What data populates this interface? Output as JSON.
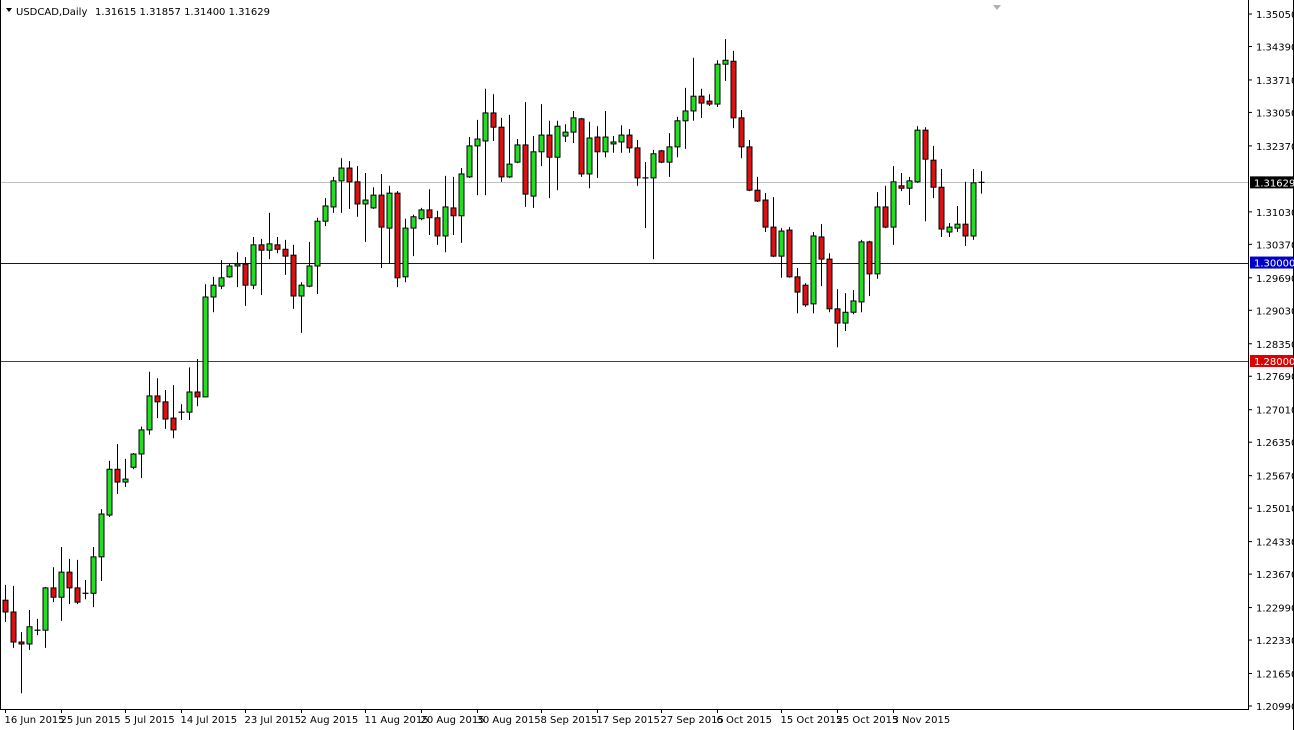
{
  "header": {
    "menu_icon": "triangle-down-icon",
    "symbol": "USDCAD,Daily",
    "ohlc": "1.31615 1.31857 1.31400 1.31629"
  },
  "colors": {
    "bull": "#22dd22",
    "bear": "#dd1111",
    "outline": "#000000",
    "level_blue": "#0000cc",
    "level_red": "#dd0000",
    "bid_line": "#c0c0c0"
  },
  "chart_data": {
    "type": "candlestick",
    "symbol": "USDCAD",
    "timeframe": "Daily",
    "ylim": [
      1.2099,
      1.3505
    ],
    "y_ticks": [
      "1.35050",
      "1.34390",
      "1.33710",
      "1.33050",
      "1.32370",
      "1.31030",
      "1.30370",
      "1.29690",
      "1.29030",
      "1.28350",
      "1.27690",
      "1.27010",
      "1.26350",
      "1.25670",
      "1.25010",
      "1.24330",
      "1.23670",
      "1.22990",
      "1.22330",
      "1.21650",
      "1.20990"
    ],
    "x_ticks": [
      {
        "bar": 0,
        "label": "16 Jun 2015"
      },
      {
        "bar": 7,
        "label": "25 Jun 2015"
      },
      {
        "bar": 15,
        "label": "5 Jul 2015"
      },
      {
        "bar": 22,
        "label": "14 Jul 2015"
      },
      {
        "bar": 30,
        "label": "23 Jul 2015"
      },
      {
        "bar": 37,
        "label": "2 Aug 2015"
      },
      {
        "bar": 45,
        "label": "11 Aug 2015"
      },
      {
        "bar": 52,
        "label": "20 Aug 2015"
      },
      {
        "bar": 59,
        "label": "30 Aug 2015"
      },
      {
        "bar": 67,
        "label": "8 Sep 2015"
      },
      {
        "bar": 74,
        "label": "17 Sep 2015"
      },
      {
        "bar": 82,
        "label": "27 Sep 2015"
      },
      {
        "bar": 89,
        "label": "6 Oct 2015"
      },
      {
        "bar": 97,
        "label": "15 Oct 2015"
      },
      {
        "bar": 104,
        "label": "25 Oct 2015"
      },
      {
        "bar": 111,
        "label": "3 Nov 2015"
      }
    ],
    "levels": [
      {
        "price": 1.31629,
        "label": "1.31629",
        "color": "#c0c0c0",
        "tag_bg": "#000000"
      },
      {
        "price": 1.3,
        "label": "1.30000",
        "color": "#0000cc",
        "tag_bg": "#0000cc"
      },
      {
        "price": 1.28,
        "label": "1.28000",
        "color": "#dd0000",
        "tag_bg": "#dd0000"
      }
    ],
    "ohlc": [
      [
        1.2314,
        1.2345,
        1.227,
        1.229
      ],
      [
        1.229,
        1.2343,
        1.2217,
        1.2229
      ],
      [
        1.2229,
        1.2249,
        1.2125,
        1.2225
      ],
      [
        1.2225,
        1.2294,
        1.2213,
        1.226
      ],
      [
        1.2251,
        1.2276,
        1.2243,
        1.2253
      ],
      [
        1.2253,
        1.2341,
        1.2217,
        1.2339
      ],
      [
        1.2339,
        1.2381,
        1.231,
        1.232
      ],
      [
        1.232,
        1.2422,
        1.2272,
        1.2371
      ],
      [
        1.2371,
        1.2398,
        1.2306,
        1.2339
      ],
      [
        1.2339,
        1.2396,
        1.2306,
        1.231
      ],
      [
        1.2326,
        1.2355,
        1.2316,
        1.2328
      ],
      [
        1.2328,
        1.2422,
        1.23,
        1.2402
      ],
      [
        1.2402,
        1.2499,
        1.2353,
        1.2489
      ],
      [
        1.2487,
        1.2597,
        1.2483,
        1.258
      ],
      [
        1.258,
        1.2631,
        1.253,
        1.2554
      ],
      [
        1.2554,
        1.2601,
        1.2544,
        1.256
      ],
      [
        1.2584,
        1.2613,
        1.258,
        1.2611
      ],
      [
        1.2611,
        1.2667,
        1.2562,
        1.266
      ],
      [
        1.266,
        1.2778,
        1.265,
        1.2729
      ],
      [
        1.2729,
        1.2765,
        1.2684,
        1.2717
      ],
      [
        1.2717,
        1.2741,
        1.2662,
        1.2682
      ],
      [
        1.2684,
        1.2751,
        1.2643,
        1.266
      ],
      [
        1.2694,
        1.2712,
        1.268,
        1.2696
      ],
      [
        1.2696,
        1.2787,
        1.268,
        1.2737
      ],
      [
        1.2737,
        1.2804,
        1.2708,
        1.2727
      ],
      [
        1.2727,
        1.2956,
        1.2727,
        1.293
      ],
      [
        1.293,
        1.2971,
        1.2899,
        1.2954
      ],
      [
        1.2952,
        1.3005,
        1.2946,
        1.2969
      ],
      [
        1.2971,
        1.2997,
        1.2969,
        1.2993
      ],
      [
        1.2993,
        1.3021,
        1.295,
        1.2997
      ],
      [
        1.2997,
        1.3011,
        1.2912,
        1.2954
      ],
      [
        1.2954,
        1.3052,
        1.2946,
        1.3036
      ],
      [
        1.3036,
        1.3048,
        1.2934,
        1.3025
      ],
      [
        1.3025,
        1.3101,
        1.3007,
        1.3038
      ],
      [
        1.3036,
        1.3052,
        1.3019,
        1.3027
      ],
      [
        1.3027,
        1.3046,
        1.2975,
        1.3013
      ],
      [
        1.3015,
        1.3036,
        1.2906,
        1.2932
      ],
      [
        1.2932,
        1.296,
        1.2857,
        1.2954
      ],
      [
        1.2952,
        1.3042,
        1.295,
        1.2993
      ],
      [
        1.2993,
        1.3091,
        1.2936,
        1.3084
      ],
      [
        1.3084,
        1.3131,
        1.3074,
        1.3115
      ],
      [
        1.3113,
        1.3174,
        1.3101,
        1.3166
      ],
      [
        1.3166,
        1.3212,
        1.3101,
        1.3192
      ],
      [
        1.3192,
        1.3206,
        1.3109,
        1.3164
      ],
      [
        1.3164,
        1.3196,
        1.3093,
        1.3119
      ],
      [
        1.3119,
        1.3182,
        1.3042,
        1.3127
      ],
      [
        1.3111,
        1.3153,
        1.3109,
        1.3137
      ],
      [
        1.3137,
        1.318,
        1.2989,
        1.3072
      ],
      [
        1.307,
        1.3156,
        1.2997,
        1.3141
      ],
      [
        1.3141,
        1.3145,
        1.295,
        1.2969
      ],
      [
        1.2971,
        1.3089,
        1.296,
        1.307
      ],
      [
        1.307,
        1.3097,
        1.3013,
        1.3093
      ],
      [
        1.3089,
        1.3111,
        1.3086,
        1.3107
      ],
      [
        1.3107,
        1.3149,
        1.3056,
        1.3091
      ],
      [
        1.3091,
        1.3105,
        1.3036,
        1.3054
      ],
      [
        1.3054,
        1.3176,
        1.3021,
        1.3113
      ],
      [
        1.3111,
        1.3174,
        1.3056,
        1.3095
      ],
      [
        1.3095,
        1.3192,
        1.304,
        1.318
      ],
      [
        1.3174,
        1.3255,
        1.3172,
        1.3237
      ],
      [
        1.3237,
        1.329,
        1.3137,
        1.3251
      ],
      [
        1.3247,
        1.3353,
        1.3137,
        1.3304
      ],
      [
        1.3304,
        1.3342,
        1.3247,
        1.3275
      ],
      [
        1.3275,
        1.3294,
        1.3164,
        1.3174
      ],
      [
        1.3174,
        1.33,
        1.3172,
        1.32
      ],
      [
        1.3204,
        1.3251,
        1.3202,
        1.3239
      ],
      [
        1.3239,
        1.3326,
        1.3113,
        1.3139
      ],
      [
        1.3135,
        1.3257,
        1.3111,
        1.3225
      ],
      [
        1.3225,
        1.3322,
        1.3196,
        1.3259
      ],
      [
        1.3259,
        1.3288,
        1.3131,
        1.3214
      ],
      [
        1.3214,
        1.3288,
        1.3147,
        1.3277
      ],
      [
        1.3257,
        1.3281,
        1.3245,
        1.3265
      ],
      [
        1.3265,
        1.3308,
        1.3243,
        1.3294
      ],
      [
        1.3292,
        1.3294,
        1.3174,
        1.318
      ],
      [
        1.318,
        1.3286,
        1.3151,
        1.3253
      ],
      [
        1.3255,
        1.3277,
        1.3172,
        1.3225
      ],
      [
        1.3225,
        1.3308,
        1.3214,
        1.3255
      ],
      [
        1.3241,
        1.3257,
        1.3223,
        1.3245
      ],
      [
        1.3245,
        1.3279,
        1.3223,
        1.3259
      ],
      [
        1.3259,
        1.3271,
        1.3223,
        1.3233
      ],
      [
        1.3233,
        1.3249,
        1.3156,
        1.3172
      ],
      [
        1.3172,
        1.3204,
        1.307,
        1.317
      ],
      [
        1.3172,
        1.3229,
        1.3007,
        1.3221
      ],
      [
        1.3227,
        1.3229,
        1.3202,
        1.3204
      ],
      [
        1.3204,
        1.3263,
        1.3174,
        1.3235
      ],
      [
        1.3235,
        1.3296,
        1.3214,
        1.3288
      ],
      [
        1.3288,
        1.3355,
        1.3231,
        1.3308
      ],
      [
        1.3308,
        1.3416,
        1.3288,
        1.3338
      ],
      [
        1.3338,
        1.3353,
        1.3294,
        1.3324
      ],
      [
        1.3328,
        1.3342,
        1.3318,
        1.3322
      ],
      [
        1.3322,
        1.3411,
        1.3316,
        1.3403
      ],
      [
        1.3403,
        1.3454,
        1.3369,
        1.3411
      ],
      [
        1.3409,
        1.343,
        1.3273,
        1.3294
      ],
      [
        1.3294,
        1.331,
        1.3212,
        1.3235
      ],
      [
        1.3235,
        1.3249,
        1.3145,
        1.3147
      ],
      [
        1.3147,
        1.3174,
        1.3123,
        1.3125
      ],
      [
        1.3127,
        1.3141,
        1.3062,
        1.3072
      ],
      [
        1.3072,
        1.3133,
        1.3011,
        1.3013
      ],
      [
        1.3013,
        1.307,
        1.2969,
        1.3064
      ],
      [
        1.3066,
        1.3072,
        1.2969,
        1.2971
      ],
      [
        1.2971,
        1.2989,
        1.2897,
        1.294
      ],
      [
        1.2954,
        1.2958,
        1.291,
        1.2914
      ],
      [
        1.2916,
        1.3062,
        1.2897,
        1.3054
      ],
      [
        1.3052,
        1.3078,
        1.2952,
        1.3007
      ],
      [
        1.3007,
        1.3019,
        1.2899,
        1.2906
      ],
      [
        1.2906,
        1.2946,
        1.2828,
        1.2877
      ],
      [
        1.2877,
        1.2938,
        1.2861,
        1.2899
      ],
      [
        1.2899,
        1.2944,
        1.2895,
        1.2922
      ],
      [
        1.292,
        1.3046,
        1.2899,
        1.3042
      ],
      [
        1.3042,
        1.3044,
        1.2932,
        1.2977
      ],
      [
        1.2977,
        1.3143,
        1.2967,
        1.3113
      ],
      [
        1.3113,
        1.3156,
        1.307,
        1.3072
      ],
      [
        1.3072,
        1.3196,
        1.3036,
        1.3164
      ],
      [
        1.3156,
        1.3182,
        1.3145,
        1.3151
      ],
      [
        1.3151,
        1.3174,
        1.3117,
        1.3166
      ],
      [
        1.3164,
        1.3277,
        1.3162,
        1.3269
      ],
      [
        1.3269,
        1.3275,
        1.3084,
        1.321
      ],
      [
        1.3208,
        1.3237,
        1.3131,
        1.3153
      ],
      [
        1.3153,
        1.319,
        1.3052,
        1.3068
      ],
      [
        1.3062,
        1.308,
        1.3052,
        1.3072
      ],
      [
        1.307,
        1.3115,
        1.3062,
        1.3078
      ],
      [
        1.3078,
        1.3164,
        1.3034,
        1.3054
      ],
      [
        1.3054,
        1.319,
        1.3046,
        1.3162
      ],
      [
        1.31615,
        1.31857,
        1.314,
        1.31629
      ]
    ]
  }
}
